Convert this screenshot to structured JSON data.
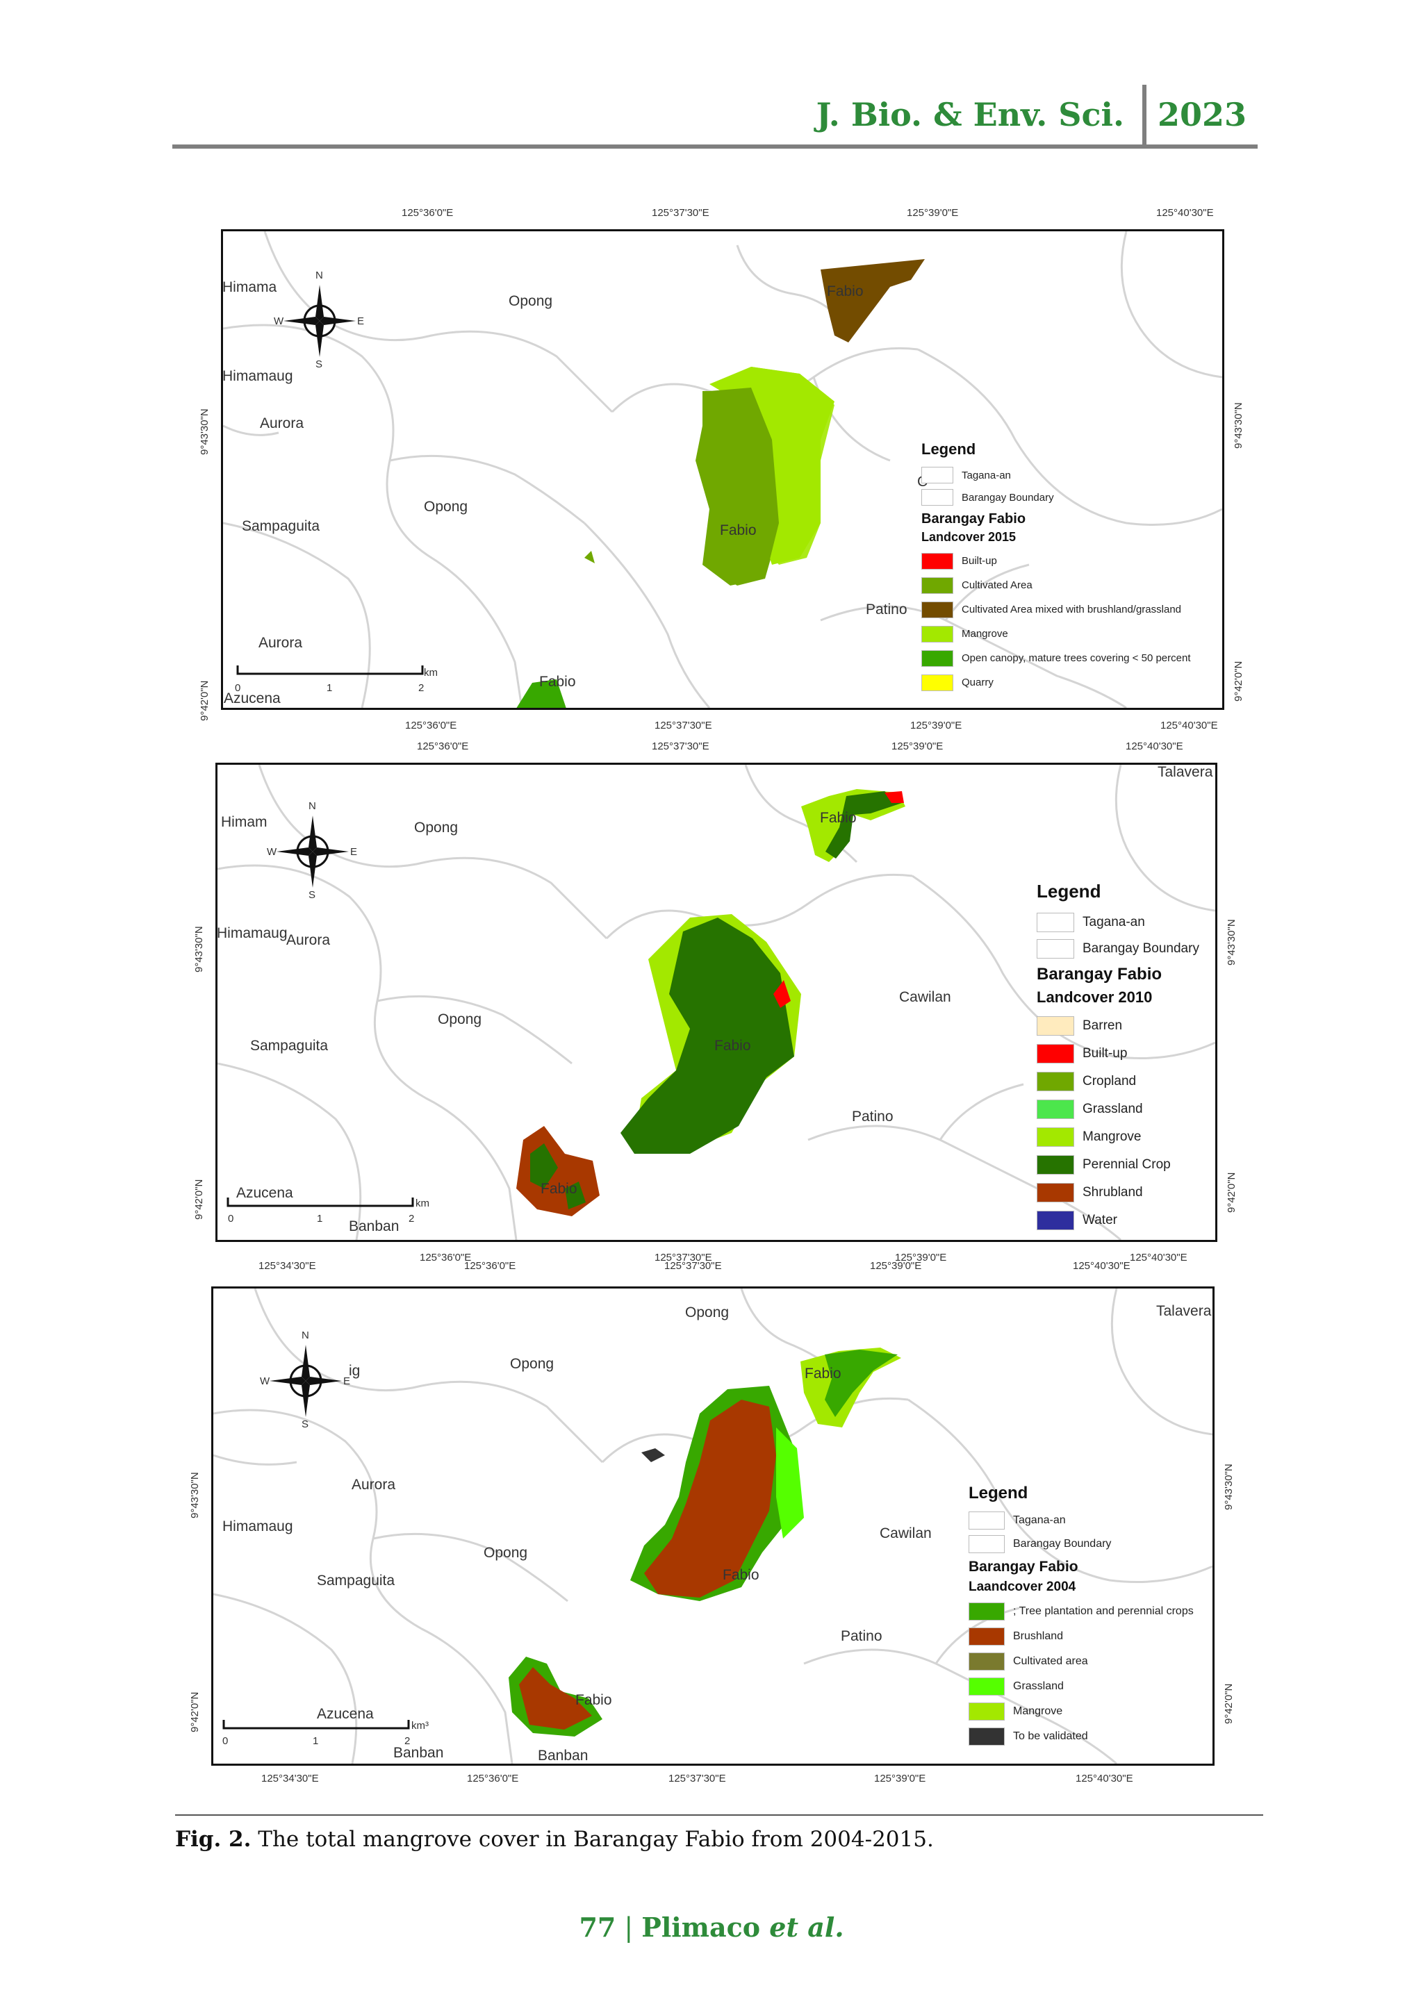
{
  "header": {
    "journal": "J. Bio. & Env. Sci.",
    "year": "2023"
  },
  "maps": [
    {
      "top_coords": [
        "125°36'0\"E",
        "125°37'30\"E",
        "125°39'0\"E",
        "125°40'30\"E"
      ],
      "bottom_coords": [
        "125°36'0\"E",
        "125°37'30\"E",
        "125°39'0\"E",
        "125°40'30\"E"
      ],
      "left_coords": [
        "9°43'30\"N",
        "9°42'0\"N"
      ],
      "right_coords": [
        "9°43'30\"N",
        "9°42'0\"N"
      ],
      "places": [
        "Himama",
        "Opong",
        "Fabio",
        "Himamaug",
        "Aurora",
        "Opong",
        "Sampaguita",
        "Fabio",
        "Patino",
        "Aurora",
        "Fabio",
        "Azucena",
        "C"
      ],
      "scale": {
        "ticks": [
          "0",
          "1",
          "2"
        ],
        "unit": "km"
      },
      "compass": {
        "n": "N",
        "s": "S",
        "e": "E",
        "w": "W"
      },
      "legend": {
        "title": "Legend",
        "boundary_items": [
          "Tagana-an",
          "Barangay Boundary"
        ],
        "subtitle": "Barangay Fabio",
        "subtitle2": "Landcover 2015",
        "items": [
          {
            "label": "Built-up",
            "color": "#ff0000"
          },
          {
            "label": "Cultivated Area",
            "color": "#70a800"
          },
          {
            "label": "Cultivated Area mixed with brushland/grassland",
            "color": "#734c00"
          },
          {
            "label": "Mangrove",
            "color": "#a3e800"
          },
          {
            "label": "Open canopy, mature trees covering < 50 percent",
            "color": "#38a800"
          },
          {
            "label": "Quarry",
            "color": "#ffff00"
          }
        ]
      }
    },
    {
      "top_coords": [
        "125°36'0\"E",
        "125°37'30\"E",
        "125°39'0\"E",
        "125°40'30\"E"
      ],
      "bottom_coords": [
        "125°36'0\"E",
        "125°37'30\"E",
        "125°39'0\"E",
        "125°40'30\"E"
      ],
      "left_coords": [
        "9°43'30\"N",
        "9°42'0\"N"
      ],
      "right_coords": [
        "9°43'30\"N",
        "9°42'0\"N"
      ],
      "places": [
        "Talavera",
        "Himam",
        "Opong",
        "Fabio",
        "Himamaug",
        "Aurora",
        "Opong",
        "Cawilan",
        "Sampaguita",
        "Fabio",
        "Patino",
        "Azucena",
        "Fabio",
        "Banban"
      ],
      "scale": {
        "ticks": [
          "0",
          "1",
          "2"
        ],
        "unit": "km"
      },
      "compass": {
        "n": "N",
        "s": "S",
        "e": "E",
        "w": "W"
      },
      "legend": {
        "title": "Legend",
        "boundary_items": [
          "Tagana-an",
          "Barangay Boundary"
        ],
        "subtitle": "Barangay Fabio",
        "subtitle2": "Landcover 2010",
        "items": [
          {
            "label": "Barren",
            "color": "#ffebbe"
          },
          {
            "label": "Built-up",
            "color": "#ff0000"
          },
          {
            "label": "Cropland",
            "color": "#70a800"
          },
          {
            "label": "Grassland",
            "color": "#4ce64c"
          },
          {
            "label": "Mangrove",
            "color": "#a3e800"
          },
          {
            "label": "Perennial Crop",
            "color": "#267300"
          },
          {
            "label": "Shrubland",
            "color": "#a83800"
          },
          {
            "label": "Water",
            "color": "#2e2e9e"
          }
        ]
      }
    },
    {
      "top_coords": [
        "125°34'30\"E",
        "125°36'0\"E",
        "125°37'30\"E",
        "125°39'0\"E",
        "125°40'30\"E"
      ],
      "bottom_coords": [
        "125°34'30\"E",
        "125°36'0\"E",
        "125°37'30\"E",
        "125°39'0\"E",
        "125°40'30\"E"
      ],
      "left_coords": [
        "9°43'30\"N",
        "9°42'0\"N"
      ],
      "right_coords": [
        "9°43'30\"N",
        "9°42'0\"N"
      ],
      "places": [
        "Opong",
        "Talavera",
        "Opong",
        "Fabio",
        "ig",
        "Aurora",
        "Himamaug",
        "Opong",
        "Cawilan",
        "Sampaguita",
        "Fabio",
        "Patino",
        "Azucena",
        "Fabio",
        "Banban",
        "Banban"
      ],
      "scale": {
        "ticks": [
          "0",
          "1",
          "2"
        ],
        "unit": "km³"
      },
      "compass": {
        "n": "N",
        "s": "S",
        "e": "E",
        "w": "W"
      },
      "legend": {
        "title": "Legend",
        "boundary_items": [
          "Tagana-an",
          "Barangay Boundary"
        ],
        "subtitle": "Barangay Fabio",
        "subtitle2": "Laandcover 2004",
        "items": [
          {
            "label": "; Tree plantation and perennial crops",
            "color": "#38a800"
          },
          {
            "label": "Brushland",
            "color": "#a83800"
          },
          {
            "label": "Cultivated area",
            "color": "#7a7a2e"
          },
          {
            "label": "Grassland",
            "color": "#55ff00"
          },
          {
            "label": "Mangrove",
            "color": "#a3e800"
          },
          {
            "label": "To be validated",
            "color": "#333333"
          }
        ]
      }
    }
  ],
  "caption": {
    "label": "Fig. 2.",
    "text": " The total mangrove cover in Barangay Fabio from 2004-2015."
  },
  "footer": {
    "page": "77",
    "sep": " | ",
    "authors": "Plimaco ",
    "etal": "et al."
  }
}
